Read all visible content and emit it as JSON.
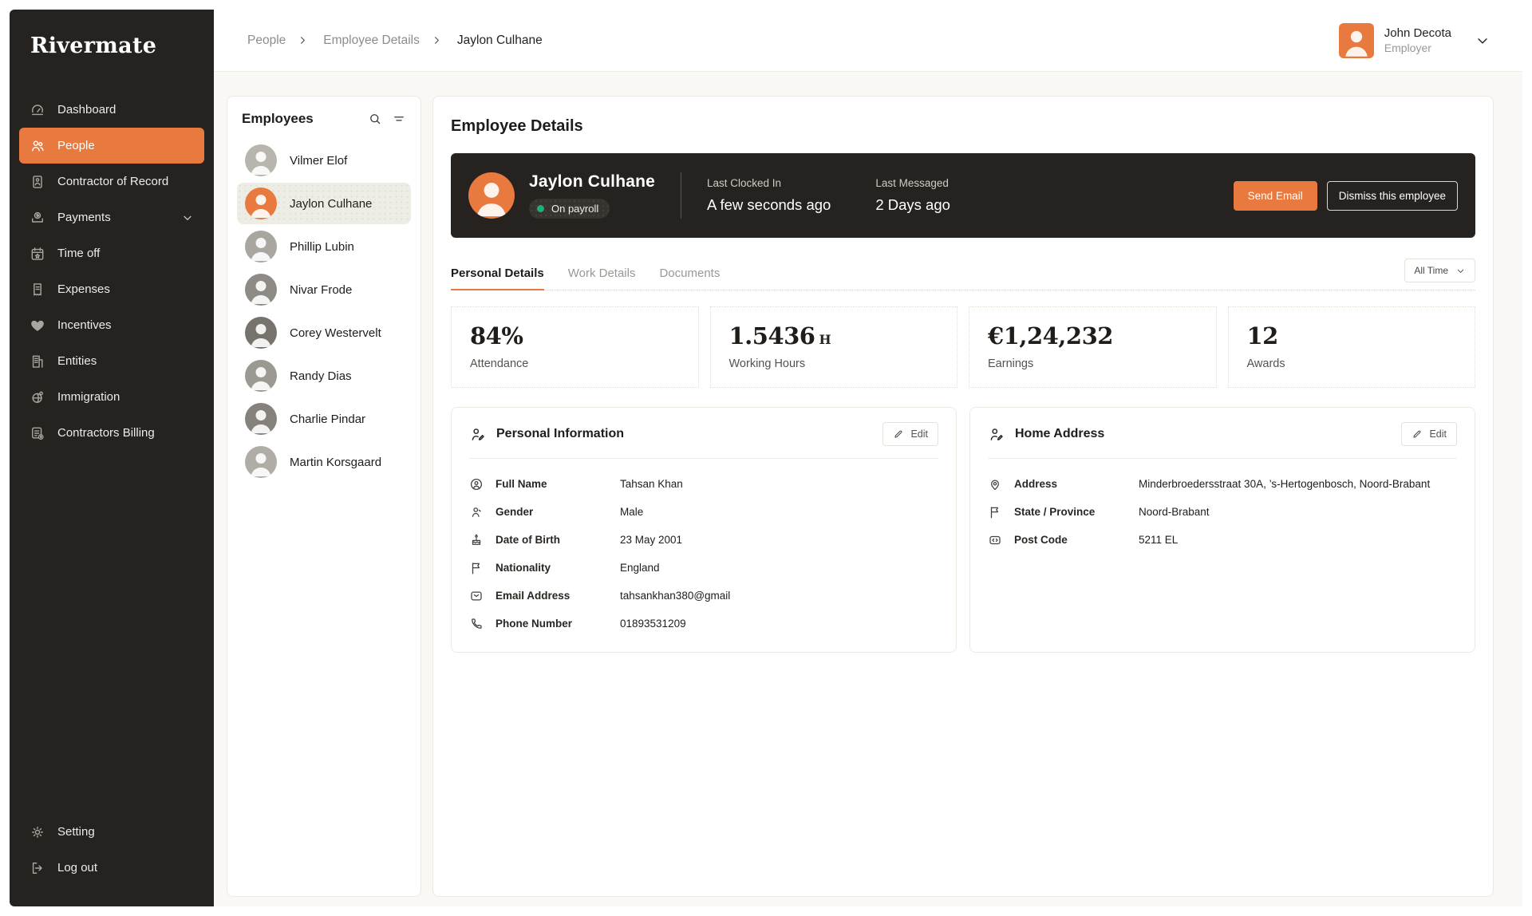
{
  "colors": {
    "accent": "#E8793F",
    "sidebar_bg": "#262220",
    "page_bg": "#FAF8F5",
    "green": "#1EAE7E",
    "selected_row": "#EDEDE6"
  },
  "brand": {
    "logo": "Rivermate"
  },
  "sidebar": {
    "items": [
      {
        "label": "Dashboard",
        "icon": "dashboard"
      },
      {
        "label": "People",
        "icon": "people",
        "active": true
      },
      {
        "label": "Contractor of Record",
        "icon": "id-card"
      },
      {
        "label": "Payments",
        "icon": "payments",
        "has_chevron": true
      },
      {
        "label": "Time off",
        "icon": "calendar"
      },
      {
        "label": "Expenses",
        "icon": "receipt"
      },
      {
        "label": "Incentives",
        "icon": "heart"
      },
      {
        "label": "Entities",
        "icon": "building"
      },
      {
        "label": "Immigration",
        "icon": "globe"
      },
      {
        "label": "Contractors Billing",
        "icon": "billing"
      }
    ],
    "footer_items": [
      {
        "label": "Setting",
        "icon": "gear"
      },
      {
        "label": "Log out",
        "icon": "logout"
      }
    ]
  },
  "topbar": {
    "breadcrumb": [
      {
        "label": "People"
      },
      {
        "label": "Employee Details"
      },
      {
        "label": "Jaylon Culhane",
        "current": true
      }
    ],
    "user": {
      "name": "John Decota",
      "role": "Employer",
      "avatar_color": "#E8793F"
    }
  },
  "employees_panel": {
    "title": "Employees",
    "items": [
      {
        "name": "Vilmer Elof",
        "avatar_color": "#B8B4AE"
      },
      {
        "name": "Jaylon Culhane",
        "avatar_color": "#E8793F",
        "selected": true
      },
      {
        "name": "Phillip Lubin",
        "avatar_color": "#A9A59F"
      },
      {
        "name": "Nivar Frode",
        "avatar_color": "#8E8A84"
      },
      {
        "name": "Corey Westervelt",
        "avatar_color": "#76726C"
      },
      {
        "name": "Randy Dias",
        "avatar_color": "#9C9892"
      },
      {
        "name": "Charlie Pindar",
        "avatar_color": "#85817B"
      },
      {
        "name": "Martin Korsgaard",
        "avatar_color": "#B0ACA6"
      }
    ]
  },
  "main": {
    "title": "Employee Details",
    "header_card": {
      "name": "Jaylon Culhane",
      "avatar_color": "#E8793F",
      "status": "On payroll",
      "last_clocked_in_label": "Last Clocked In",
      "last_clocked_in": "A few seconds ago",
      "last_messaged_label": "Last Messaged",
      "last_messaged": "2 Days ago",
      "send_email_label": "Send Email",
      "dismiss_label": "Dismiss this employee"
    },
    "tabs": [
      {
        "label": "Personal Details",
        "active": true
      },
      {
        "label": "Work Details"
      },
      {
        "label": "Documents"
      }
    ],
    "time_filter": "All Time",
    "stats": [
      {
        "value": "84%",
        "unit": "",
        "label": "Attendance"
      },
      {
        "value": "1.5436",
        "unit": "H",
        "label": "Working Hours"
      },
      {
        "value": "€1,24,232",
        "unit": "",
        "label": "Earnings"
      },
      {
        "value": "12",
        "unit": "",
        "label": "Awards"
      }
    ],
    "personal_info": {
      "title": "Personal Information",
      "edit_label": "Edit",
      "rows": [
        {
          "icon": "person-circle",
          "label": "Full Name",
          "value": "Tahsan Khan"
        },
        {
          "icon": "person",
          "label": "Gender",
          "value": "Male"
        },
        {
          "icon": "cake",
          "label": "Date of Birth",
          "value": "23 May 2001"
        },
        {
          "icon": "flag",
          "label": "Nationality",
          "value": "England"
        },
        {
          "icon": "mail",
          "label": "Email Address",
          "value": "tahsankhan380@gmail"
        },
        {
          "icon": "phone",
          "label": "Phone Number",
          "value": "01893531209"
        }
      ]
    },
    "home_address": {
      "title": "Home Address",
      "edit_label": "Edit",
      "rows": [
        {
          "icon": "pin",
          "label": "Address",
          "value": "Minderbroedersstraat 30A, ’s-Hertogenbosch,  Noord-Brabant"
        },
        {
          "icon": "flag",
          "label": "State / Province",
          "value": "Noord-Brabant"
        },
        {
          "icon": "postcode",
          "label": "Post Code",
          "value": "5211 EL"
        }
      ]
    }
  }
}
